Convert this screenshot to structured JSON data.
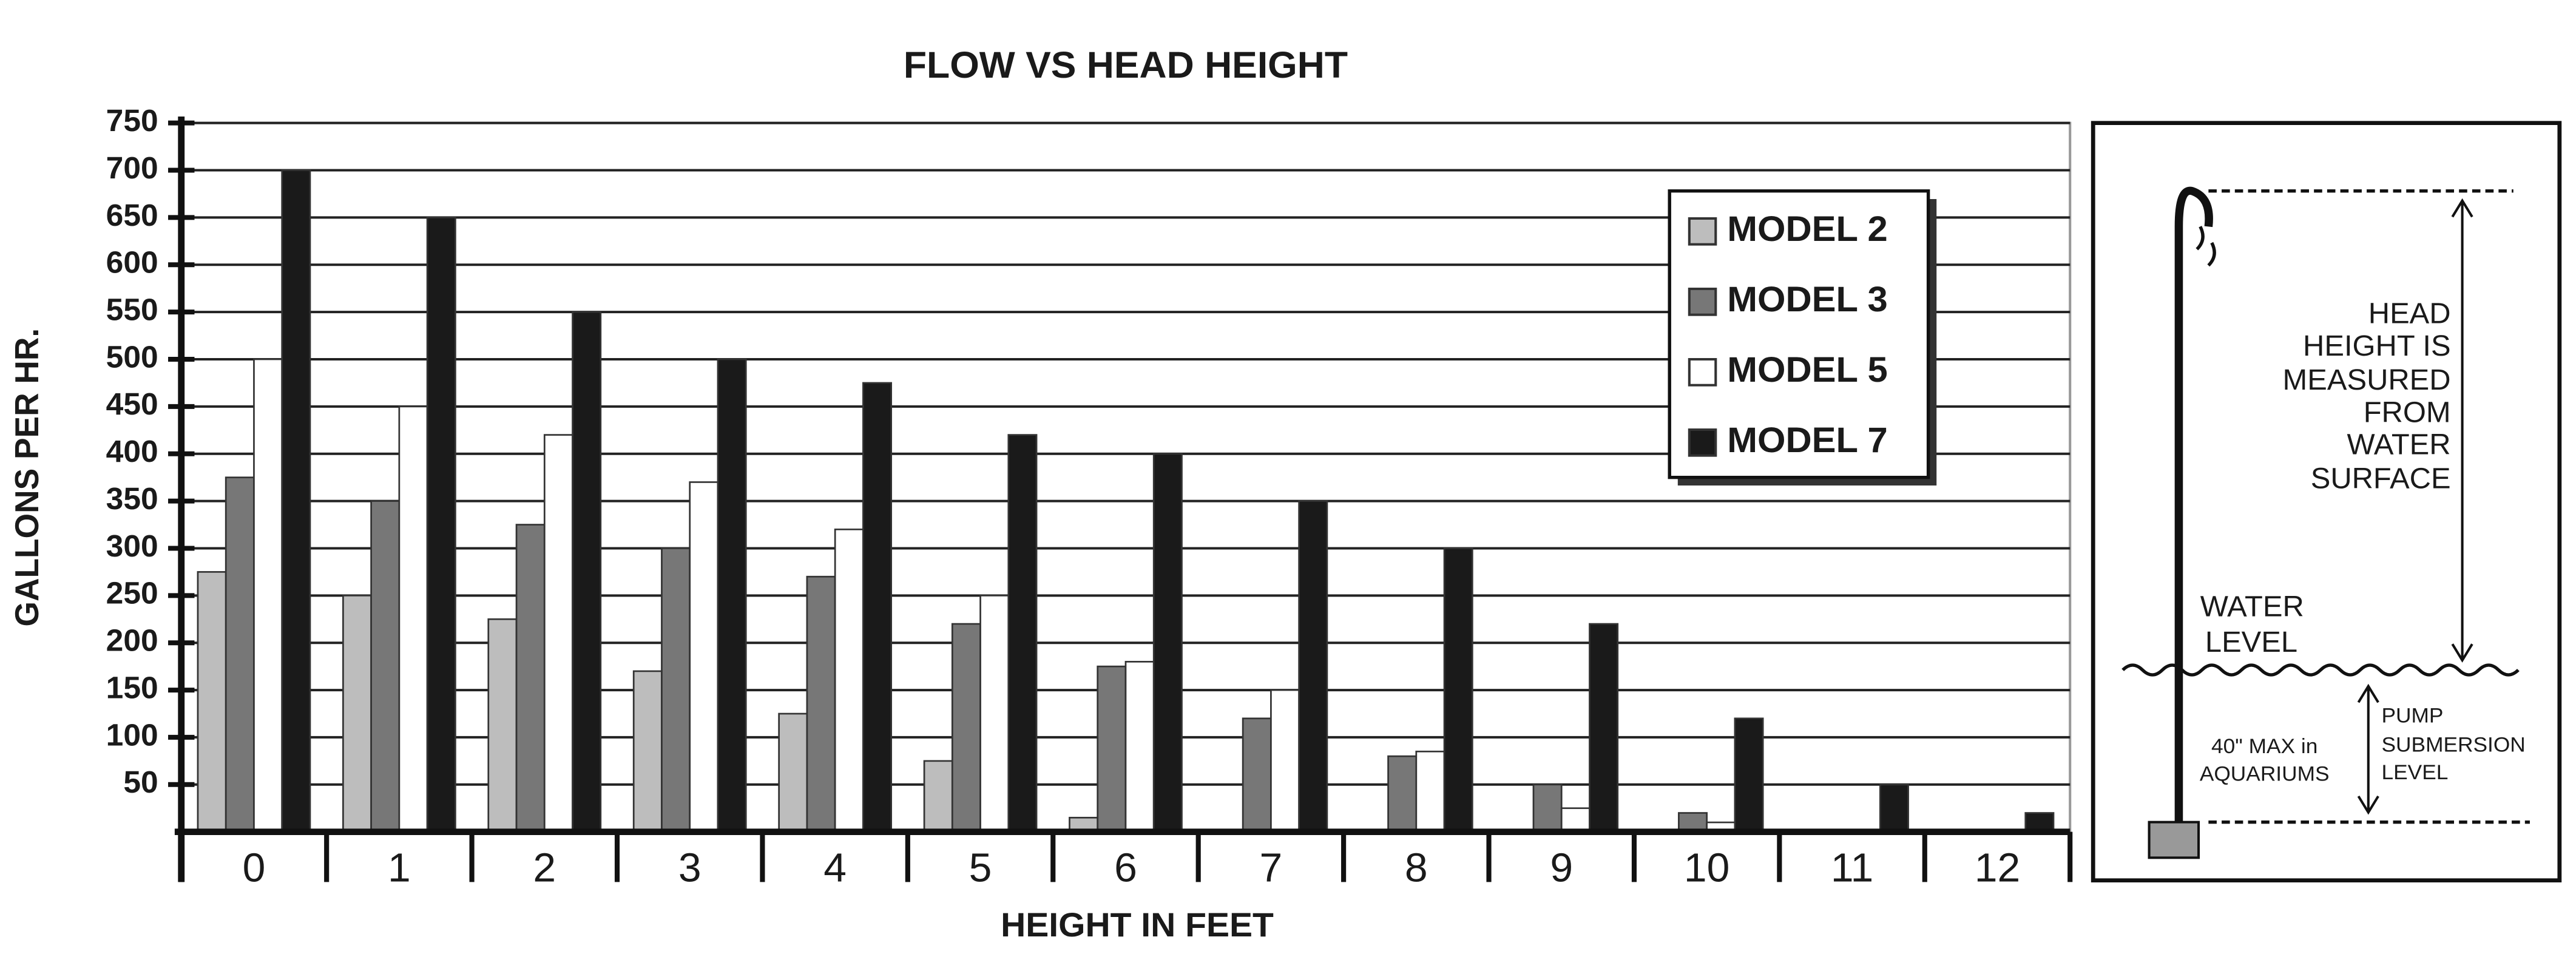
{
  "chart_data": {
    "type": "bar",
    "title": "FLOW VS HEAD HEIGHT",
    "x_label": "HEIGHT IN FEET",
    "y_label": "GALLONS PER HR.",
    "categories": [
      "0",
      "1",
      "2",
      "3",
      "4",
      "5",
      "6",
      "7",
      "8",
      "9",
      "10",
      "11",
      "12"
    ],
    "series": [
      {
        "name": "MODEL 2",
        "color": "#bdbdbd",
        "values": [
          275,
          250,
          225,
          170,
          125,
          75,
          15,
          0,
          0,
          0,
          0,
          0,
          0
        ]
      },
      {
        "name": "MODEL 3",
        "color": "#777777",
        "values": [
          375,
          350,
          325,
          300,
          270,
          220,
          175,
          120,
          80,
          50,
          20,
          0,
          0
        ]
      },
      {
        "name": "MODEL 5",
        "color": "#ffffff",
        "values": [
          500,
          450,
          420,
          370,
          320,
          250,
          180,
          150,
          85,
          25,
          10,
          0,
          0
        ]
      },
      {
        "name": "MODEL 7",
        "color": "#1a1a1a",
        "values": [
          700,
          650,
          550,
          500,
          475,
          420,
          400,
          350,
          300,
          220,
          120,
          50,
          20
        ]
      }
    ],
    "ylim": [
      0,
      750
    ],
    "yticks": [
      50,
      100,
      150,
      200,
      250,
      300,
      350,
      400,
      450,
      500,
      550,
      600,
      650,
      700,
      750
    ],
    "grid": true,
    "legend": "upper right"
  },
  "diagram": {
    "head_note": [
      "HEAD",
      "HEIGHT IS",
      "MEASURED",
      "FROM",
      "WATER",
      "SURFACE"
    ],
    "water_level": [
      "WATER",
      "LEVEL"
    ],
    "max_note": [
      "40\" MAX in",
      "AQUARIUMS"
    ],
    "pump_note": [
      "PUMP",
      "SUBMERSION",
      "LEVEL"
    ]
  }
}
